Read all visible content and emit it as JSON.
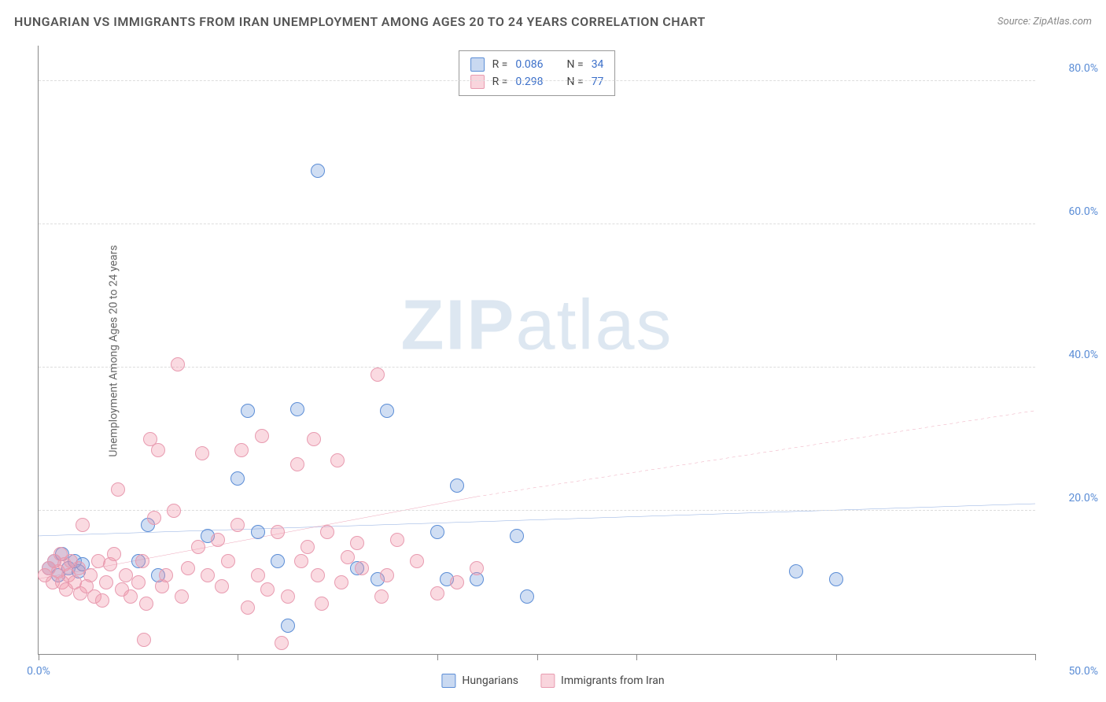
{
  "title": "HUNGARIAN VS IMMIGRANTS FROM IRAN UNEMPLOYMENT AMONG AGES 20 TO 24 YEARS CORRELATION CHART",
  "source": "Source: ZipAtlas.com",
  "y_axis_label": "Unemployment Among Ages 20 to 24 years",
  "watermark_bold": "ZIP",
  "watermark_light": "atlas",
  "chart": {
    "type": "scatter",
    "xlim": [
      0,
      50
    ],
    "ylim": [
      0,
      85
    ],
    "x_ticks": [
      0,
      10,
      20,
      25,
      30,
      40,
      50
    ],
    "x_tick_labels": {
      "0": "0.0%",
      "50": "50.0%"
    },
    "y_gridlines": [
      20,
      40,
      60,
      80
    ],
    "y_tick_labels": {
      "20": "20.0%",
      "40": "40.0%",
      "60": "60.0%",
      "80": "80.0%"
    },
    "background_color": "#ffffff",
    "grid_color": "#dddddd",
    "axis_color": "#888888",
    "marker_size": 18,
    "series": [
      {
        "name": "Hungarians",
        "color_fill": "rgba(120,160,220,0.35)",
        "color_stroke": "#5b8dd6",
        "R": "0.086",
        "N": "34",
        "trend": {
          "x1": 0,
          "y1": 16.5,
          "x2": 50,
          "y2": 21.0,
          "dash_after_x": 50,
          "color": "#3b6fc9",
          "width": 2.5
        },
        "points": [
          [
            0.5,
            12
          ],
          [
            0.8,
            13
          ],
          [
            1.0,
            11
          ],
          [
            1.2,
            14
          ],
          [
            1.5,
            12
          ],
          [
            1.8,
            13
          ],
          [
            2.0,
            11.5
          ],
          [
            2.2,
            12.5
          ],
          [
            5.0,
            13
          ],
          [
            5.5,
            18
          ],
          [
            6.0,
            11
          ],
          [
            8.5,
            16.5
          ],
          [
            10.0,
            24.5
          ],
          [
            10.5,
            34
          ],
          [
            11.0,
            17
          ],
          [
            12.0,
            13
          ],
          [
            12.5,
            4
          ],
          [
            13.0,
            34.2
          ],
          [
            16.0,
            12
          ],
          [
            17.0,
            10.5
          ],
          [
            17.5,
            34
          ],
          [
            20.0,
            17
          ],
          [
            20.5,
            10.5
          ],
          [
            21.0,
            23.5
          ],
          [
            22.0,
            10.5
          ],
          [
            24.0,
            16.5
          ],
          [
            24.5,
            8
          ],
          [
            14.0,
            67.5
          ],
          [
            38.0,
            11.5
          ],
          [
            40.0,
            10.5
          ]
        ]
      },
      {
        "name": "Immigrants from Iran",
        "color_fill": "rgba(240,150,170,0.35)",
        "color_stroke": "#e89bb0",
        "R": "0.298",
        "N": "77",
        "trend": {
          "x1": 0,
          "y1": 10.5,
          "x2": 22,
          "y2": 22,
          "dash_after_x": 22,
          "dash_x2": 50,
          "dash_y2": 34,
          "color": "#e06a8a",
          "width": 2.5
        },
        "points": [
          [
            0.3,
            11
          ],
          [
            0.5,
            12
          ],
          [
            0.7,
            10
          ],
          [
            0.8,
            13
          ],
          [
            1.0,
            11.5
          ],
          [
            1.1,
            14
          ],
          [
            1.2,
            10
          ],
          [
            1.3,
            12.5
          ],
          [
            1.4,
            9
          ],
          [
            1.5,
            11
          ],
          [
            1.6,
            13
          ],
          [
            1.8,
            10
          ],
          [
            2.0,
            12
          ],
          [
            2.1,
            8.5
          ],
          [
            2.2,
            18
          ],
          [
            2.4,
            9.5
          ],
          [
            2.6,
            11
          ],
          [
            2.8,
            8
          ],
          [
            3.0,
            13
          ],
          [
            3.2,
            7.5
          ],
          [
            3.4,
            10
          ],
          [
            3.6,
            12.5
          ],
          [
            3.8,
            14
          ],
          [
            4.0,
            23
          ],
          [
            4.2,
            9
          ],
          [
            4.4,
            11
          ],
          [
            4.6,
            8
          ],
          [
            5.0,
            10
          ],
          [
            5.2,
            13
          ],
          [
            5.4,
            7
          ],
          [
            5.6,
            30
          ],
          [
            5.8,
            19
          ],
          [
            6.0,
            28.5
          ],
          [
            6.2,
            9.5
          ],
          [
            6.4,
            11
          ],
          [
            6.8,
            20
          ],
          [
            7.0,
            40.5
          ],
          [
            7.2,
            8
          ],
          [
            7.5,
            12
          ],
          [
            8.0,
            15
          ],
          [
            8.2,
            28
          ],
          [
            8.5,
            11
          ],
          [
            9.0,
            16
          ],
          [
            9.2,
            9.5
          ],
          [
            9.5,
            13
          ],
          [
            10.0,
            18
          ],
          [
            10.2,
            28.5
          ],
          [
            10.5,
            6.5
          ],
          [
            11.0,
            11
          ],
          [
            11.2,
            30.5
          ],
          [
            11.5,
            9
          ],
          [
            12.0,
            17
          ],
          [
            12.2,
            1.5
          ],
          [
            12.5,
            8
          ],
          [
            13.0,
            26.5
          ],
          [
            13.2,
            13
          ],
          [
            13.5,
            15
          ],
          [
            13.8,
            30
          ],
          [
            14.0,
            11
          ],
          [
            14.2,
            7
          ],
          [
            14.5,
            17
          ],
          [
            15.0,
            27
          ],
          [
            15.2,
            10
          ],
          [
            15.5,
            13.5
          ],
          [
            16.0,
            15.5
          ],
          [
            16.2,
            12
          ],
          [
            17.0,
            39
          ],
          [
            17.2,
            8
          ],
          [
            17.5,
            11
          ],
          [
            18.0,
            16
          ],
          [
            19.0,
            13
          ],
          [
            20.0,
            8.5
          ],
          [
            21.0,
            10
          ],
          [
            22.0,
            12
          ],
          [
            5.3,
            2
          ]
        ]
      }
    ]
  },
  "top_legend": {
    "rows": [
      {
        "swatch": "blue",
        "r_label": "R =",
        "r_val": "0.086",
        "n_label": "N =",
        "n_val": "34"
      },
      {
        "swatch": "pink",
        "r_label": "R =",
        "r_val": "0.298",
        "n_label": "N =",
        "n_val": "77"
      }
    ]
  },
  "bottom_legend": {
    "items": [
      {
        "swatch": "blue",
        "label": "Hungarians"
      },
      {
        "swatch": "pink",
        "label": "Immigrants from Iran"
      }
    ]
  }
}
